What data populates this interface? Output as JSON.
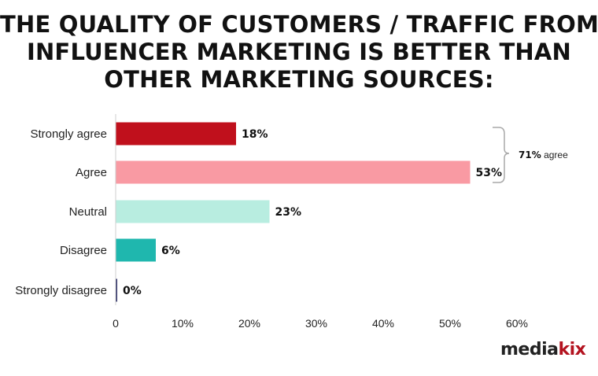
{
  "chart_data": {
    "type": "bar",
    "orientation": "horizontal",
    "title_lines": [
      "THE QUALITY OF CUSTOMERS / TRAFFIC FROM",
      "INFLUENCER MARKETING IS BETTER THAN",
      "OTHER MARKETING SOURCES:"
    ],
    "categories": [
      "Strongly agree",
      "Agree",
      "Neutral",
      "Disagree",
      "Strongly disagree"
    ],
    "values": [
      18,
      53,
      23,
      6,
      0
    ],
    "value_labels": [
      "18%",
      "53%",
      "23%",
      "6%",
      "0%"
    ],
    "colors": [
      "#c0101c",
      "#f99aa3",
      "#b8ede0",
      "#1fb7ae",
      "#2c2f66"
    ],
    "xlim": [
      0,
      60
    ],
    "xticks": [
      "0",
      "10%",
      "20%",
      "30%",
      "40%",
      "50%",
      "60%"
    ],
    "grid": false,
    "annotation": {
      "bold": "71%",
      "text": " agree",
      "spans": [
        "Strongly agree",
        "Agree"
      ]
    }
  },
  "brand": {
    "part1": "media",
    "part2": "kix"
  }
}
